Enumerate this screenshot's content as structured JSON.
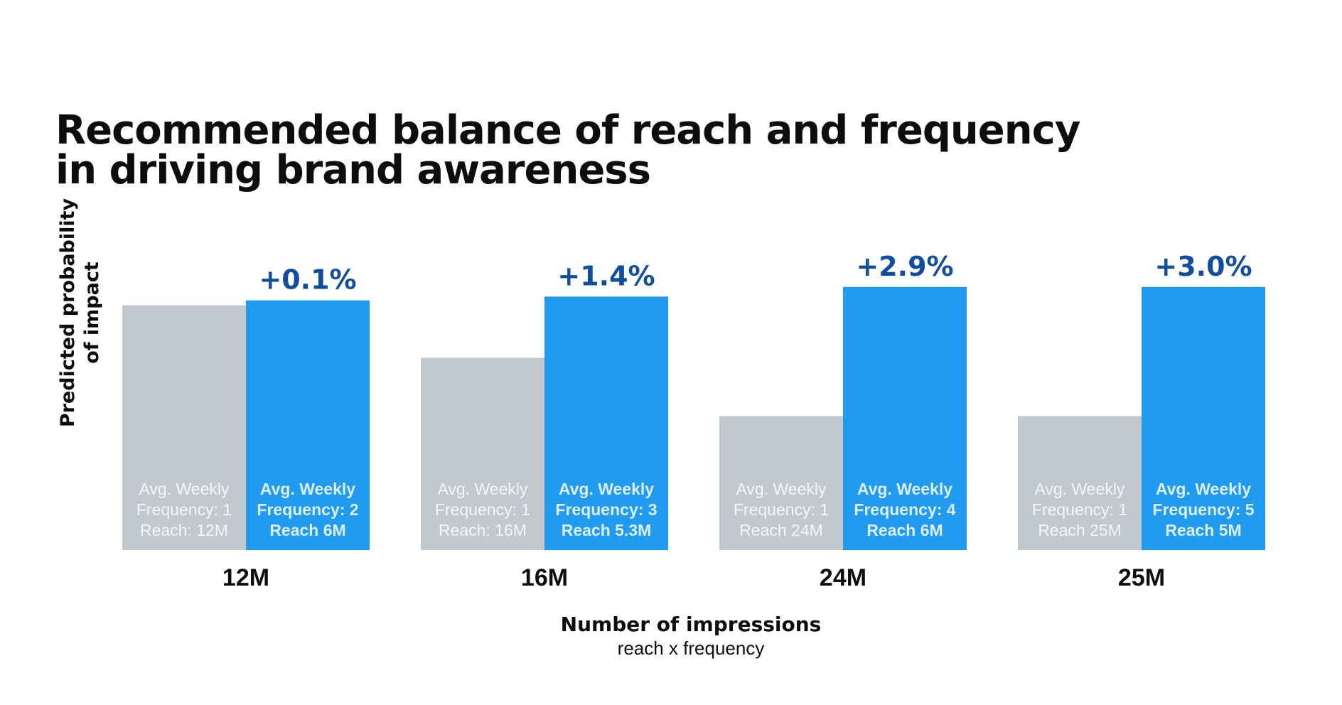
{
  "title": {
    "line1": "Recommended balance of reach and frequency",
    "line2": "in driving brand awareness"
  },
  "chart_data": {
    "type": "bar",
    "title": "Recommended balance of reach and frequency in driving brand awareness",
    "ylabel_lines": [
      "Predicted probability",
      "of impact"
    ],
    "xlabel": "Number of impressions",
    "xlabel_sub": "reach x frequency",
    "categories": [
      "12M",
      "16M",
      "24M",
      "25M"
    ],
    "ylim": [
      0,
      100
    ],
    "grid": false,
    "series": [
      {
        "values": [
          84,
          66,
          46,
          46
        ],
        "color": "#c1c8ce",
        "label_color": "#f4f6f7",
        "label_bold": false,
        "bar_labels": [
          [
            "Avg. Weekly",
            "Frequency: 1",
            "Reach: 12M"
          ],
          [
            "Avg. Weekly",
            "Frequency: 1",
            "Reach: 16M"
          ],
          [
            "Avg. Weekly",
            "Frequency: 1",
            "Reach 24M"
          ],
          [
            "Avg. Weekly",
            "Frequency: 1",
            "Reach 25M"
          ]
        ]
      },
      {
        "values": [
          85.7,
          87,
          90.3,
          90.3
        ],
        "color": "#219bf0",
        "label_color": "#dcefff",
        "label_bold": true,
        "bar_labels": [
          [
            "Avg. Weekly",
            "Frequency: 2",
            "Reach 6M"
          ],
          [
            "Avg. Weekly",
            "Frequency: 3",
            "Reach 5.3M"
          ],
          [
            "Avg. Weekly",
            "Frequency: 4",
            "Reach 6M"
          ],
          [
            "Avg. Weekly",
            "Frequency: 5",
            "Reach 5M"
          ]
        ]
      }
    ],
    "annotations": [
      "+0.1%",
      "+1.4%",
      "+2.9%",
      "+3.0%"
    ],
    "annotation_color": "#114f9e"
  }
}
